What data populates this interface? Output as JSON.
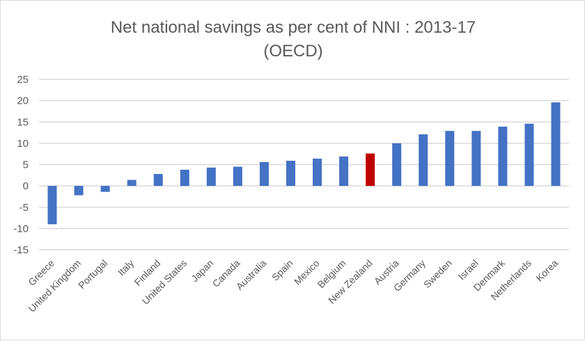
{
  "chart_data": {
    "type": "bar",
    "title": "Net national savings as per cent of NNI : 2013-17",
    "subtitle": "(OECD)",
    "xlabel": "",
    "ylabel": "",
    "ylim": [
      -15,
      25
    ],
    "yticks": [
      "25",
      "20",
      "15",
      "10",
      "5",
      "0",
      "-5",
      "-10",
      "-15"
    ],
    "grid": true,
    "legend": "none",
    "categories": [
      "Greece",
      "United Kingdom",
      "Portugal",
      "Italy",
      "Finland",
      "United States",
      "Japan",
      "Canada",
      "Australia",
      "Spain",
      "Mexico",
      "Belgium",
      "New Zealand",
      "Austria",
      "Germany",
      "Sweden",
      "Israel",
      "Denmark",
      "Netherlands",
      "Korea"
    ],
    "values": [
      -9.0,
      -2.2,
      -1.4,
      1.4,
      2.8,
      3.8,
      4.3,
      4.5,
      5.6,
      5.9,
      6.4,
      6.9,
      7.6,
      10.0,
      12.1,
      12.9,
      12.9,
      13.9,
      14.6,
      19.6
    ],
    "colors": {
      "default": "#4472c4",
      "highlight": "#c00000",
      "grid": "#d9d9d9"
    },
    "highlight_category": "New Zealand"
  }
}
